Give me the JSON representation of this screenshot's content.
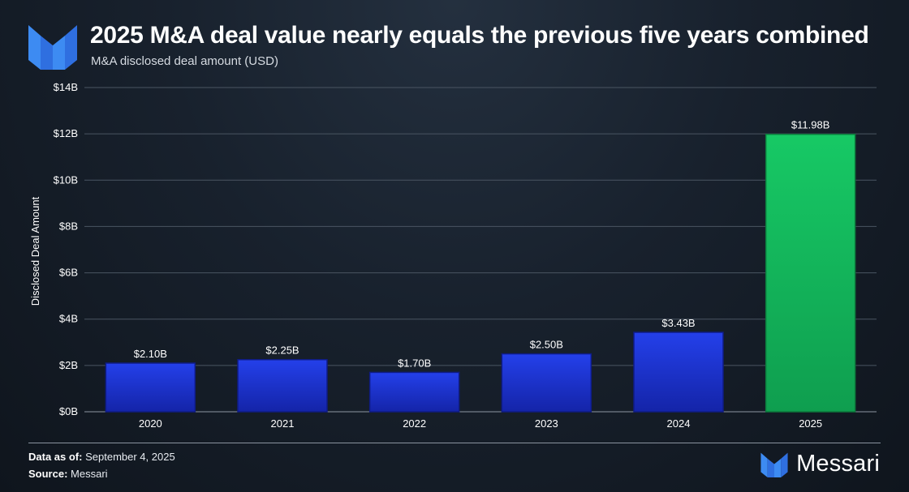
{
  "header": {
    "title": "2025 M&A deal value nearly equals the previous five years combined",
    "subtitle": "M&A disclosed deal amount (USD)"
  },
  "chart_data": {
    "type": "bar",
    "categories": [
      "2020",
      "2021",
      "2022",
      "2023",
      "2024",
      "2025"
    ],
    "values": [
      2.1,
      2.25,
      1.7,
      2.5,
      3.43,
      11.98
    ],
    "data_labels": [
      "$2.10B",
      "$2.25B",
      "$1.70B",
      "$2.50B",
      "$3.43B",
      "$11.98B"
    ],
    "ylabel": "Disclosed Deal Amount",
    "ylim": [
      0,
      14
    ],
    "yticks": [
      0,
      2,
      4,
      6,
      8,
      10,
      12,
      14
    ],
    "ytick_labels": [
      "$0B",
      "$2B",
      "$4B",
      "$6B",
      "$8B",
      "$10B",
      "$12B",
      "$14B"
    ],
    "grid": true,
    "colors": {
      "default_bar": "#1e33d6",
      "highlight_bar": "#19c261",
      "highlight_category": "2025"
    }
  },
  "footer": {
    "date_label": "Data as of:",
    "date_value": "September 4, 2025",
    "source_label": "Source:",
    "source_value": "Messari",
    "brand_name": "Messari",
    "brand_icon": "messari-logo-icon"
  }
}
